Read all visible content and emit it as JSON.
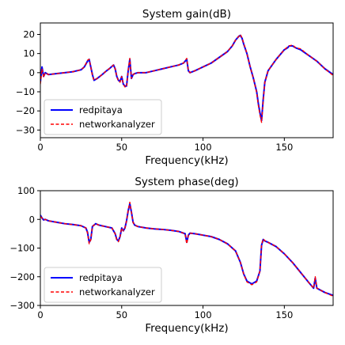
{
  "chart_data": [
    {
      "type": "line",
      "title": "System gain(dB)",
      "xlabel": "Frequency(kHz)",
      "ylabel": "",
      "xlim": [
        0,
        180
      ],
      "ylim": [
        -34,
        26
      ],
      "xticks": [
        0,
        50,
        100,
        150
      ],
      "yticks": [
        -30,
        -20,
        -10,
        0,
        10,
        20
      ],
      "grid": false,
      "legend_position": "lower-left",
      "series": [
        {
          "name": "redpitaya",
          "color": "#0000ff",
          "style": "solid",
          "x": [
            0,
            1,
            2,
            3,
            5,
            10,
            15,
            20,
            25,
            27,
            29,
            30,
            31,
            32,
            33,
            35,
            38,
            40,
            43,
            45,
            46,
            47,
            48,
            49,
            50,
            51,
            52,
            53,
            54,
            55,
            56,
            57,
            58,
            60,
            65,
            70,
            75,
            80,
            85,
            88,
            90,
            91,
            92,
            95,
            100,
            105,
            110,
            115,
            118,
            120,
            122,
            123,
            124,
            125,
            127,
            129,
            131,
            133,
            134,
            135,
            136,
            137,
            138,
            140,
            145,
            148,
            150,
            152,
            153,
            155,
            157,
            160,
            165,
            170,
            175,
            180
          ],
          "y": [
            -5,
            3,
            -2,
            0,
            -1,
            -0.5,
            0,
            0.5,
            1.5,
            3,
            6,
            7,
            3,
            -1,
            -4,
            -3,
            -1,
            0.5,
            2.5,
            4,
            2,
            -2,
            -4,
            -4.5,
            -2,
            -6,
            -7,
            -7,
            1,
            7,
            -3,
            -1,
            -0.5,
            0,
            0,
            1,
            2,
            3,
            4,
            5,
            7,
            1,
            0,
            1,
            3,
            5,
            8,
            11,
            14,
            17,
            19,
            19.5,
            18,
            15,
            10,
            3,
            -3,
            -10,
            -16,
            -21,
            -25,
            -14,
            -5,
            1,
            7,
            10,
            12,
            13,
            14,
            14,
            13,
            12,
            9,
            6,
            2,
            -1
          ]
        },
        {
          "name": "networkanalyzer",
          "color": "#ff0000",
          "style": "dashed",
          "x": [
            0,
            1,
            2,
            3,
            5,
            10,
            15,
            20,
            25,
            27,
            29,
            30,
            31,
            32,
            33,
            35,
            38,
            40,
            43,
            45,
            46,
            47,
            48,
            49,
            50,
            51,
            52,
            53,
            54,
            55,
            56,
            57,
            58,
            60,
            65,
            70,
            75,
            80,
            85,
            88,
            90,
            91,
            92,
            95,
            100,
            105,
            110,
            115,
            118,
            120,
            122,
            123,
            124,
            125,
            127,
            129,
            131,
            133,
            134,
            135,
            136,
            137,
            138,
            140,
            145,
            148,
            150,
            152,
            153,
            155,
            157,
            160,
            165,
            170,
            175,
            180
          ],
          "y": [
            -6,
            2,
            -2.5,
            0,
            -1,
            -0.5,
            0,
            0.5,
            1.5,
            3,
            6.5,
            7,
            3,
            -1.5,
            -4,
            -3,
            -1,
            0.5,
            2.5,
            4,
            2,
            -2,
            -4.5,
            -5,
            -2,
            -6,
            -7.5,
            -7.5,
            1,
            7.5,
            -3,
            -1,
            -0.5,
            0,
            0,
            1,
            2,
            3,
            4,
            5,
            7.5,
            1,
            0,
            1,
            3,
            5,
            8,
            11,
            14,
            17,
            19,
            20,
            18,
            15.5,
            10,
            3,
            -3,
            -10.5,
            -17,
            -22,
            -26,
            -15,
            -5,
            1,
            7,
            10,
            12,
            13.5,
            14,
            14.5,
            13,
            12.5,
            9,
            6,
            2,
            -1.5
          ]
        }
      ]
    },
    {
      "type": "line",
      "title": "System phase(deg)",
      "xlabel": "Frequency(kHz)",
      "ylabel": "",
      "xlim": [
        0,
        180
      ],
      "ylim": [
        -300,
        100
      ],
      "xticks": [
        0,
        50,
        100,
        150
      ],
      "yticks": [
        -300,
        -200,
        -100,
        0,
        100
      ],
      "grid": false,
      "legend_position": "lower-left",
      "series": [
        {
          "name": "redpitaya",
          "color": "#0000ff",
          "style": "solid",
          "x": [
            0,
            1,
            2,
            3,
            5,
            10,
            15,
            20,
            25,
            28,
            29,
            30,
            31,
            32,
            34,
            36,
            40,
            44,
            46,
            47,
            48,
            49,
            50,
            51,
            52,
            53,
            54,
            55,
            56,
            57,
            58,
            60,
            65,
            70,
            75,
            80,
            85,
            89,
            90,
            91,
            92,
            95,
            100,
            105,
            110,
            115,
            120,
            123,
            125,
            127,
            130,
            133,
            135,
            136,
            137,
            138,
            140,
            145,
            150,
            155,
            160,
            165,
            168,
            169,
            170,
            175,
            180
          ],
          "y": [
            15,
            5,
            -2,
            0,
            -5,
            -10,
            -15,
            -18,
            -22,
            -30,
            -45,
            -80,
            -70,
            -25,
            -15,
            -20,
            -25,
            -30,
            -50,
            -70,
            -75,
            -60,
            -30,
            -40,
            -30,
            -5,
            30,
            55,
            25,
            -10,
            -20,
            -25,
            -30,
            -33,
            -35,
            -38,
            -42,
            -50,
            -80,
            -55,
            -48,
            -50,
            -55,
            -60,
            -70,
            -85,
            -110,
            -150,
            -190,
            -215,
            -225,
            -215,
            -180,
            -90,
            -70,
            -75,
            -80,
            -95,
            -120,
            -150,
            -185,
            -220,
            -240,
            -205,
            -240,
            -255,
            -265
          ]
        },
        {
          "name": "networkanalyzer",
          "color": "#ff0000",
          "style": "dashed",
          "x": [
            0,
            1,
            2,
            3,
            5,
            10,
            15,
            20,
            25,
            28,
            29,
            30,
            31,
            32,
            34,
            36,
            40,
            44,
            46,
            47,
            48,
            49,
            50,
            51,
            52,
            53,
            54,
            55,
            56,
            57,
            58,
            60,
            65,
            70,
            75,
            80,
            85,
            89,
            90,
            91,
            92,
            95,
            100,
            105,
            110,
            115,
            120,
            123,
            125,
            127,
            130,
            133,
            135,
            136,
            137,
            138,
            140,
            145,
            150,
            155,
            160,
            165,
            168,
            169,
            170,
            175,
            180
          ],
          "y": [
            10,
            5,
            -2,
            0,
            -5,
            -10,
            -15,
            -18,
            -22,
            -30,
            -48,
            -85,
            -72,
            -25,
            -15,
            -20,
            -25,
            -30,
            -50,
            -72,
            -78,
            -60,
            -30,
            -40,
            -30,
            -5,
            32,
            60,
            25,
            -10,
            -20,
            -25,
            -30,
            -33,
            -35,
            -38,
            -42,
            -50,
            -85,
            -55,
            -48,
            -50,
            -55,
            -60,
            -70,
            -85,
            -110,
            -150,
            -190,
            -218,
            -228,
            -218,
            -180,
            -88,
            -68,
            -74,
            -80,
            -95,
            -120,
            -150,
            -185,
            -220,
            -240,
            -200,
            -240,
            -255,
            -268
          ]
        }
      ]
    }
  ]
}
